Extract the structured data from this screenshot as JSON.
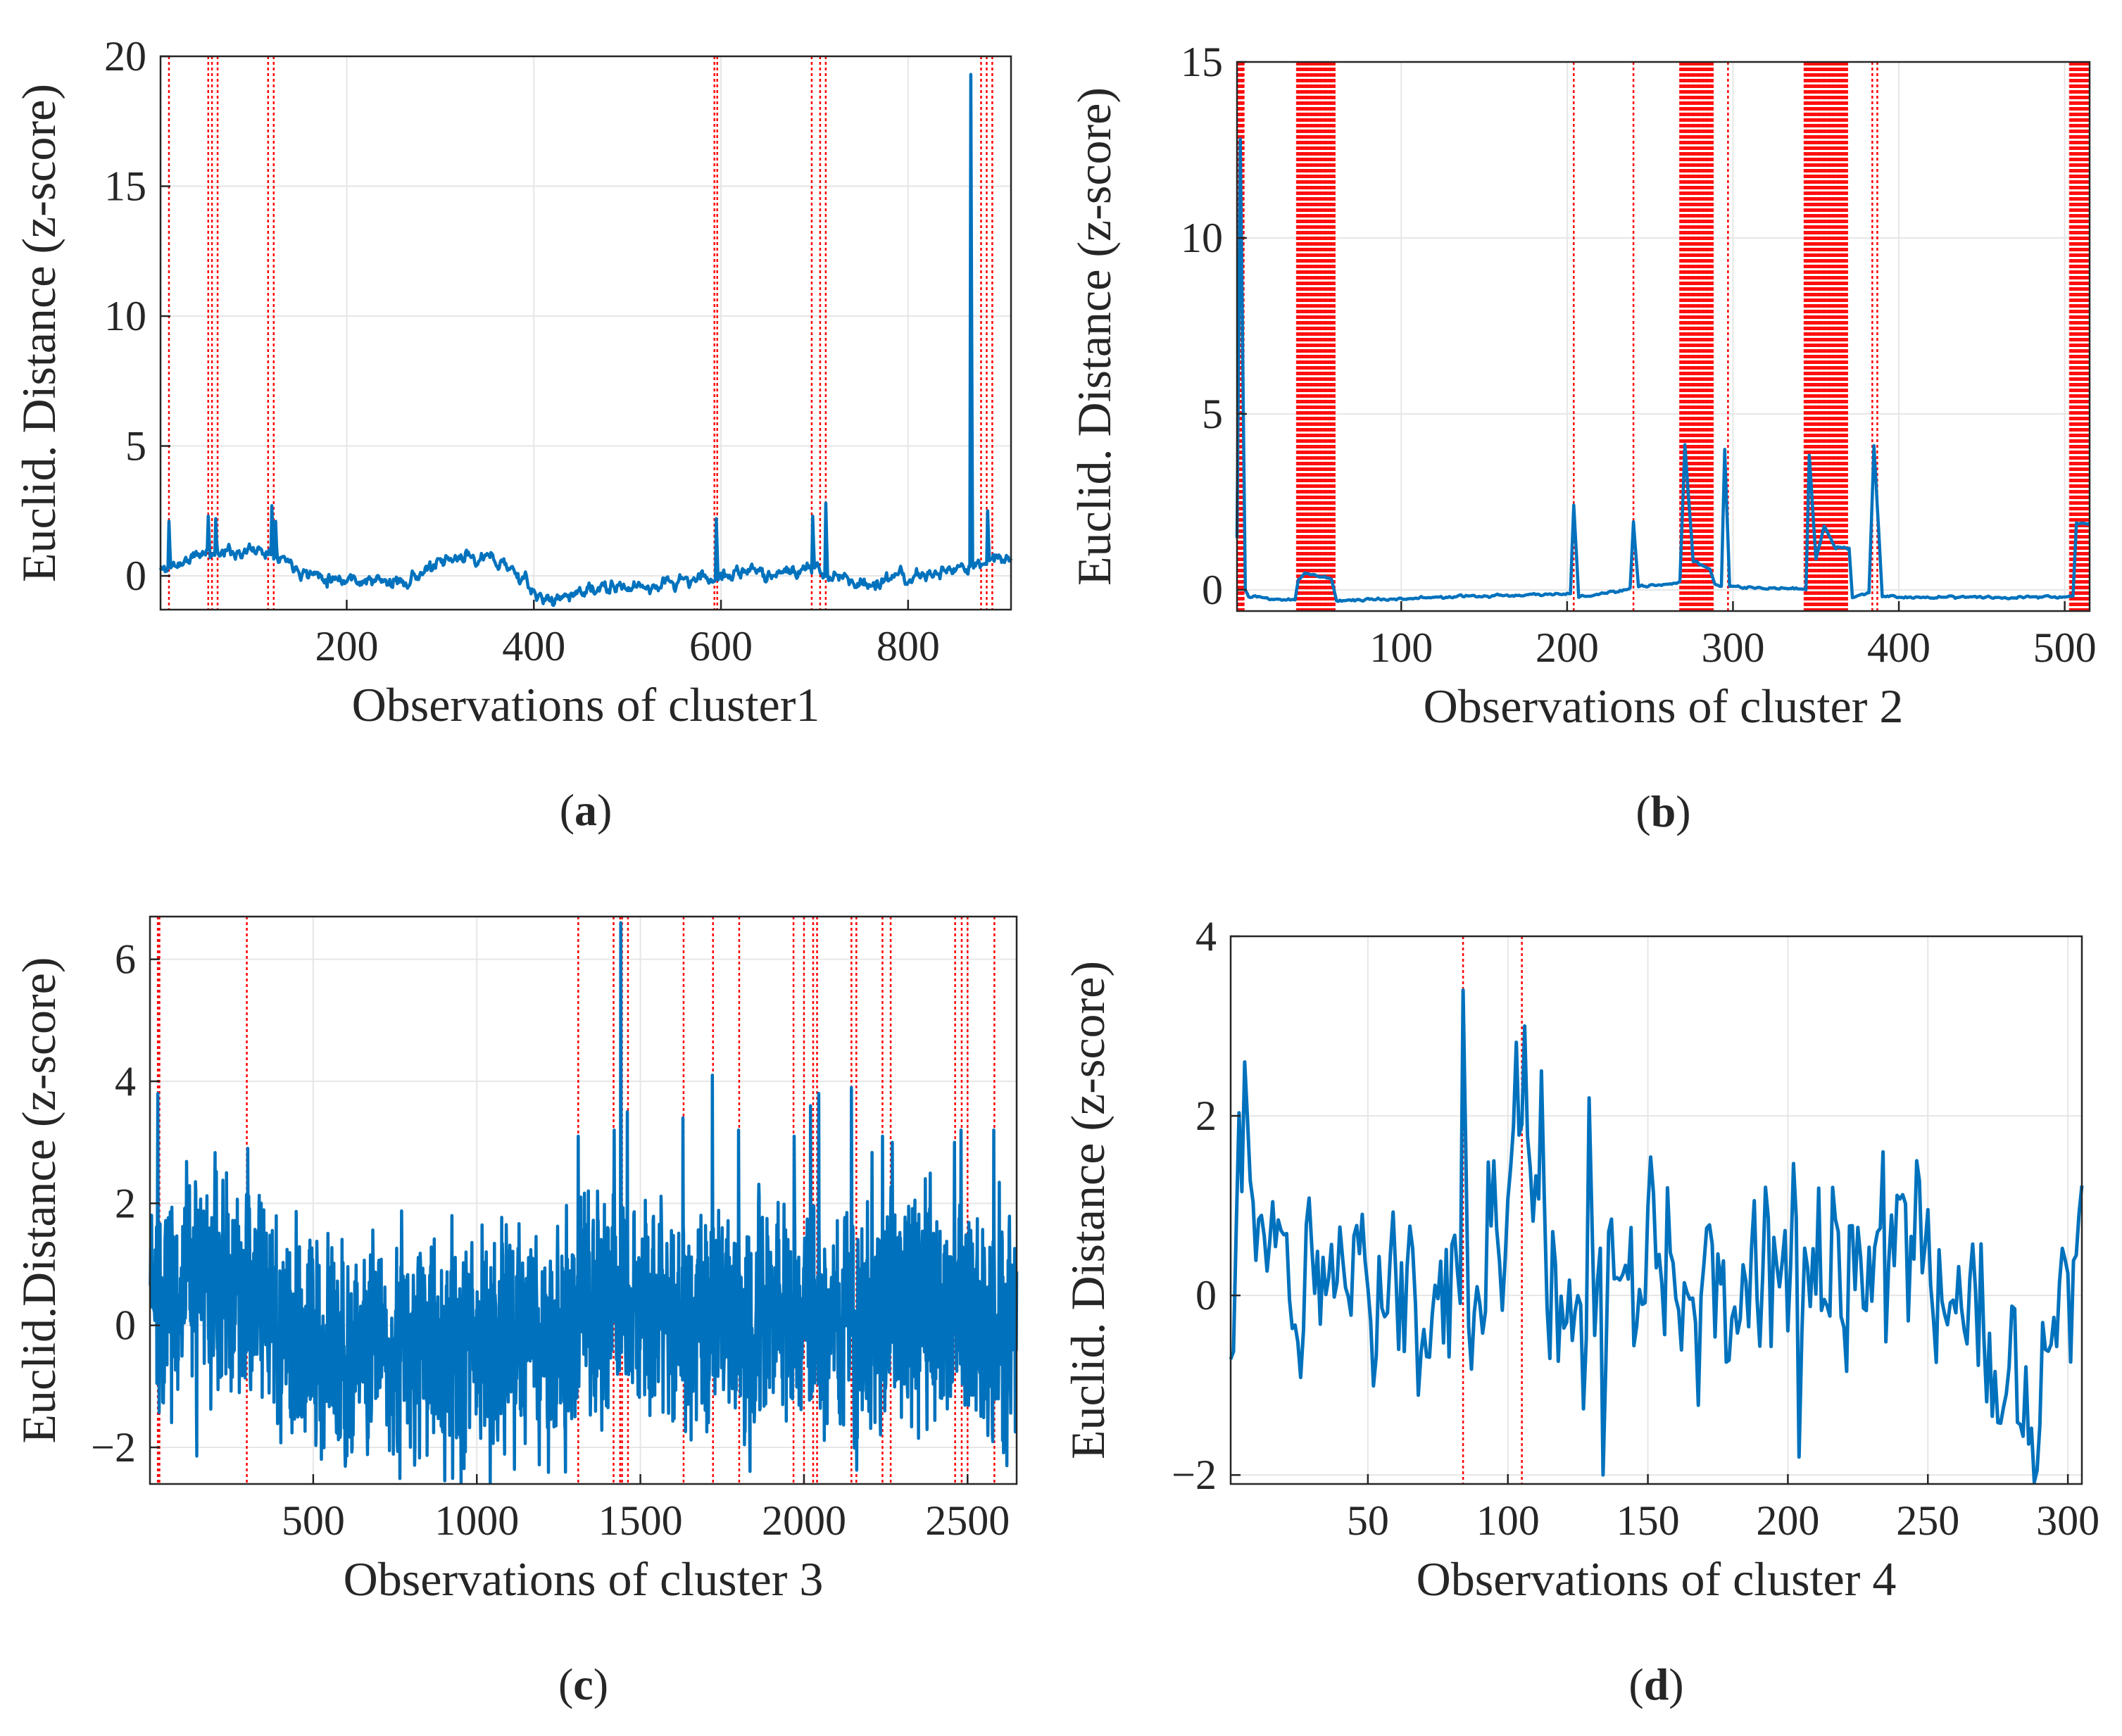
{
  "figure": {
    "panels": [
      {
        "letter": "a",
        "caption_open": "(",
        "caption_close": ")"
      },
      {
        "letter": "b",
        "caption_open": "(",
        "caption_close": ")"
      },
      {
        "letter": "c",
        "caption_open": "(",
        "caption_close": ")"
      },
      {
        "letter": "d",
        "caption_open": "(",
        "caption_close": ")"
      }
    ]
  },
  "colors": {
    "series": "#0072BD",
    "anomaly": "#FF0000",
    "grid": "#e6e6e6",
    "axis": "#262626"
  },
  "chart_data": [
    {
      "type": "line",
      "panel": "a",
      "xlabel": "Observations of cluster1",
      "ylabel": "Euclid. Distance (z-score)",
      "xlim": [
        1,
        910
      ],
      "ylim": [
        -1.3,
        20
      ],
      "xticks": [
        200,
        400,
        600,
        800
      ],
      "yticks": [
        0,
        5,
        10,
        15,
        20
      ],
      "n": 910,
      "seed": 11,
      "noise": 0.35,
      "smooth": 0.7,
      "baseline": [
        [
          1,
          0.2
        ],
        [
          50,
          0.9
        ],
        [
          120,
          1.0
        ],
        [
          160,
          0.1
        ],
        [
          250,
          -0.3
        ],
        [
          330,
          0.8
        ],
        [
          370,
          0.5
        ],
        [
          410,
          -1.0
        ],
        [
          450,
          -0.6
        ],
        [
          520,
          -0.4
        ],
        [
          620,
          0.1
        ],
        [
          700,
          0.2
        ],
        [
          760,
          -0.3
        ],
        [
          850,
          0.2
        ],
        [
          910,
          0.8
        ]
      ],
      "spikes": [
        [
          10,
          2.1
        ],
        [
          52,
          2.3
        ],
        [
          60,
          2.2
        ],
        [
          120,
          2.7
        ],
        [
          124,
          2.1
        ],
        [
          595,
          2.2
        ],
        [
          698,
          2.3
        ],
        [
          712,
          2.8
        ],
        [
          867,
          19.3
        ],
        [
          885,
          2.5
        ]
      ],
      "anomalies": [
        10,
        52,
        56,
        62,
        116,
        122,
        593,
        596,
        697,
        706,
        712,
        878,
        884,
        890
      ]
    },
    {
      "type": "line",
      "panel": "b",
      "xlabel": "Observations of cluster 2",
      "ylabel": "Euclid. Distance (z-score)",
      "xlim": [
        1,
        515
      ],
      "ylim": [
        -0.6,
        15
      ],
      "xticks": [
        100,
        200,
        300,
        400,
        500
      ],
      "yticks": [
        0,
        5,
        10,
        15
      ],
      "n": 515,
      "seed": 23,
      "noise": 0.035,
      "smooth": 0.5,
      "baseline": [
        [
          1,
          1.5
        ],
        [
          3,
          12.8
        ],
        [
          6,
          0.0
        ],
        [
          8,
          -0.2
        ],
        [
          36,
          -0.3
        ],
        [
          38,
          0.3
        ],
        [
          42,
          0.5
        ],
        [
          58,
          0.3
        ],
        [
          61,
          -0.3
        ],
        [
          202,
          -0.1
        ],
        [
          204,
          2.4
        ],
        [
          207,
          -0.2
        ],
        [
          238,
          0.0
        ],
        [
          240,
          1.9
        ],
        [
          243,
          0.1
        ],
        [
          268,
          0.2
        ],
        [
          271,
          4.1
        ],
        [
          276,
          0.8
        ],
        [
          286,
          0.6
        ],
        [
          289,
          0.2
        ],
        [
          293,
          0.1
        ],
        [
          295,
          4.0
        ],
        [
          298,
          0.1
        ],
        [
          344,
          0.0
        ],
        [
          346,
          3.8
        ],
        [
          350,
          0.9
        ],
        [
          355,
          1.8
        ],
        [
          362,
          1.2
        ],
        [
          370,
          1.2
        ],
        [
          372,
          -0.2
        ],
        [
          382,
          -0.1
        ],
        [
          385,
          4.1
        ],
        [
          390,
          -0.2
        ],
        [
          505,
          -0.2
        ],
        [
          507,
          1.9
        ],
        [
          515,
          1.9
        ]
      ],
      "spikes": [],
      "anomaly_spans": [
        [
          1,
          5
        ],
        [
          37,
          60
        ],
        [
          268,
          288
        ],
        [
          343,
          369
        ],
        [
          503,
          515
        ]
      ],
      "anomalies": [
        5,
        204,
        240,
        297,
        384,
        387
      ]
    },
    {
      "type": "line",
      "panel": "c",
      "xlabel": "Observations of cluster 3",
      "ylabel": "Euclid.Distance (z-score)",
      "xlim": [
        1,
        2650
      ],
      "ylim": [
        -2.6,
        6.7
      ],
      "xticks": [
        500,
        1000,
        1500,
        2000,
        2500
      ],
      "yticks": [
        -2,
        0,
        2,
        4,
        6
      ],
      "n": 2650,
      "seed": 37,
      "noise": 1.15,
      "smooth": 0.25,
      "baseline": [
        [
          1,
          0.6
        ],
        [
          300,
          0.6
        ],
        [
          420,
          -0.2
        ],
        [
          900,
          -0.4
        ],
        [
          1250,
          -0.2
        ],
        [
          1320,
          0.4
        ],
        [
          1600,
          0.1
        ],
        [
          2050,
          0.0
        ],
        [
          2400,
          0.3
        ],
        [
          2650,
          -0.3
        ]
      ],
      "spikes": [
        [
          25,
          3.8
        ],
        [
          300,
          2.9
        ],
        [
          1310,
          3.1
        ],
        [
          1420,
          3.2
        ],
        [
          1440,
          6.6
        ],
        [
          1460,
          3.5
        ],
        [
          1630,
          3.4
        ],
        [
          1720,
          4.1
        ],
        [
          1800,
          3.2
        ],
        [
          1970,
          3.1
        ],
        [
          2020,
          3.6
        ],
        [
          2045,
          3.8
        ],
        [
          2145,
          3.9
        ],
        [
          2240,
          3.1
        ],
        [
          2270,
          3.0
        ],
        [
          2460,
          3.0
        ],
        [
          2480,
          3.2
        ],
        [
          2580,
          3.2
        ]
      ],
      "anomalies": [
        25,
        30,
        297,
        1310,
        1418,
        1438,
        1444,
        1462,
        1632,
        1722,
        1802,
        1968,
        2000,
        2028,
        2040,
        2145,
        2160,
        2240,
        2265,
        2462,
        2482,
        2500,
        2582
      ]
    },
    {
      "type": "line",
      "panel": "d",
      "xlabel": "Observations of cluster 4",
      "ylabel": "Euclid. Distance (z-score)",
      "xlim": [
        1,
        305
      ],
      "ylim": [
        -2.1,
        4
      ],
      "xticks": [
        50,
        100,
        150,
        200,
        250,
        300
      ],
      "yticks": [
        -2,
        0,
        2,
        4
      ],
      "n": 305,
      "seed": 51,
      "noise": 0.75,
      "smooth": 0.3,
      "baseline": [
        [
          1,
          0.2
        ],
        [
          6,
          2.0
        ],
        [
          10,
          0.6
        ],
        [
          40,
          0.2
        ],
        [
          70,
          0.1
        ],
        [
          85,
          0.3
        ],
        [
          100,
          1.2
        ],
        [
          105,
          2.4
        ],
        [
          115,
          -0.7
        ],
        [
          140,
          0.2
        ],
        [
          200,
          0.3
        ],
        [
          240,
          0.5
        ],
        [
          265,
          -0.4
        ],
        [
          280,
          -1.2
        ],
        [
          295,
          -0.6
        ],
        [
          305,
          0.8
        ]
      ],
      "spikes": [
        [
          6,
          2.6
        ],
        [
          84,
          3.4
        ],
        [
          106,
          3.0
        ],
        [
          112,
          2.5
        ],
        [
          129,
          2.2
        ],
        [
          134,
          -2.0
        ],
        [
          204,
          -1.8
        ],
        [
          246,
          1.5
        ]
      ],
      "anomalies": [
        84,
        105
      ]
    }
  ]
}
